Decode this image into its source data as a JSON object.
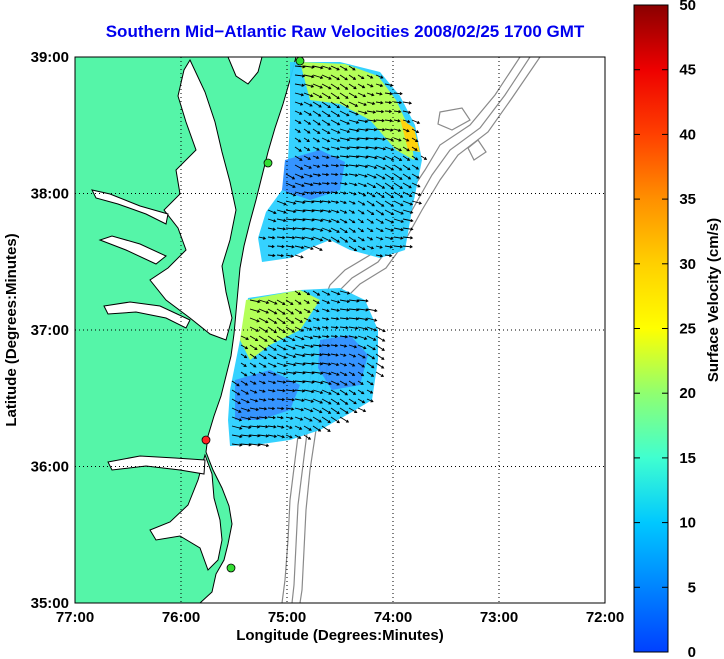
{
  "title": "Southern Mid−Atlantic Raw Velocities 2008/02/25 1700 GMT",
  "x_axis": {
    "label": "Longitude (Degrees:Minutes)",
    "ticks": [
      "77:00",
      "76:00",
      "75:00",
      "74:00",
      "73:00",
      "72:00"
    ]
  },
  "y_axis": {
    "label": "Latitude (Degrees:Minutes)",
    "ticks": [
      "39:00",
      "38:00",
      "37:00",
      "36:00",
      "35:00"
    ]
  },
  "colorbar": {
    "label": "Surface Velocity (cm/s)",
    "ticks": [
      "50",
      "45",
      "40",
      "35",
      "30",
      "25",
      "20",
      "15",
      "10",
      "5",
      "0"
    ],
    "range": [
      0,
      50
    ],
    "colormap": "jet"
  },
  "colors": {
    "land": "#55f5a8",
    "coast": "#000000",
    "bathymetry": "#8a8a8a",
    "grid": "#000000",
    "title": "#0000ee",
    "site_active": "#33dd33",
    "site_highlight": "#ff2222"
  },
  "stations": [
    {
      "status": "active"
    },
    {
      "status": "active"
    },
    {
      "status": "highlight"
    },
    {
      "status": "active"
    }
  ]
}
